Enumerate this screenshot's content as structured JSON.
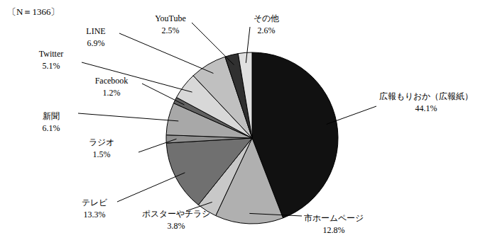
{
  "chart_data": {
    "type": "pie",
    "annotation": "〔N＝1366〕",
    "categories": [
      "広報もりおか（広報紙）",
      "市ホームページ",
      "ポスターやチラシ",
      "テレビ",
      "ラジオ",
      "新聞",
      "Facebook",
      "Twitter",
      "LINE",
      "YouTube",
      "その他"
    ],
    "values": [
      44.1,
      12.8,
      3.8,
      13.3,
      1.5,
      6.1,
      1.2,
      5.1,
      6.9,
      2.5,
      2.6
    ],
    "value_labels": [
      "44.1%",
      "12.8%",
      "3.8%",
      "13.3%",
      "1.5%",
      "6.1%",
      "1.2%",
      "5.1%",
      "6.9%",
      "2.5%",
      "2.6%"
    ],
    "colors": [
      "#111111",
      "#b0b0b0",
      "#c8c8c8",
      "#707070",
      "#909090",
      "#a8a8a8",
      "#606060",
      "#d8d8d8",
      "#c0c0c0",
      "#303030",
      "#e0e0e0"
    ],
    "data_labels": true
  }
}
